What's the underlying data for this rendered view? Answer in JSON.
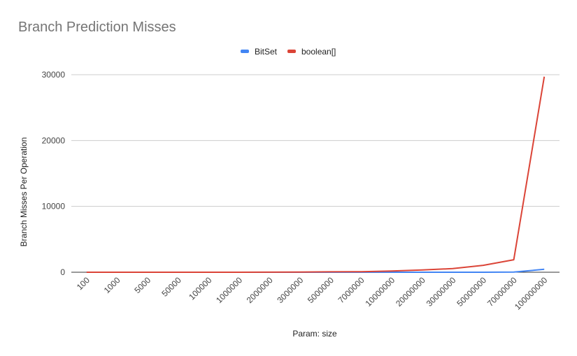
{
  "chart_data": {
    "type": "line",
    "title": "Branch Prediction Misses",
    "xlabel": "Param: size",
    "ylabel": "Branch Misses Per Operation",
    "categories": [
      "100",
      "1000",
      "5000",
      "50000",
      "100000",
      "1000000",
      "2000000",
      "3000000",
      "5000000",
      "7000000",
      "10000000",
      "20000000",
      "30000000",
      "50000000",
      "70000000",
      "100000000"
    ],
    "series": [
      {
        "name": "BitSet",
        "color": "#4285f4",
        "values": [
          0,
          0,
          0,
          0,
          0,
          0,
          0,
          0,
          0,
          0,
          0,
          0,
          0,
          0,
          20,
          450
        ]
      },
      {
        "name": "boolean[]",
        "color": "#db4437",
        "values": [
          0,
          0,
          0,
          0,
          0,
          5,
          15,
          30,
          60,
          90,
          180,
          350,
          550,
          1050,
          1900,
          29700
        ]
      }
    ],
    "ylim": [
      0,
      32500
    ],
    "yticks": [
      "0",
      "10000",
      "20000",
      "30000"
    ],
    "ytick_values": [
      0,
      10000,
      20000,
      30000
    ],
    "legend": "top",
    "grid": true
  }
}
